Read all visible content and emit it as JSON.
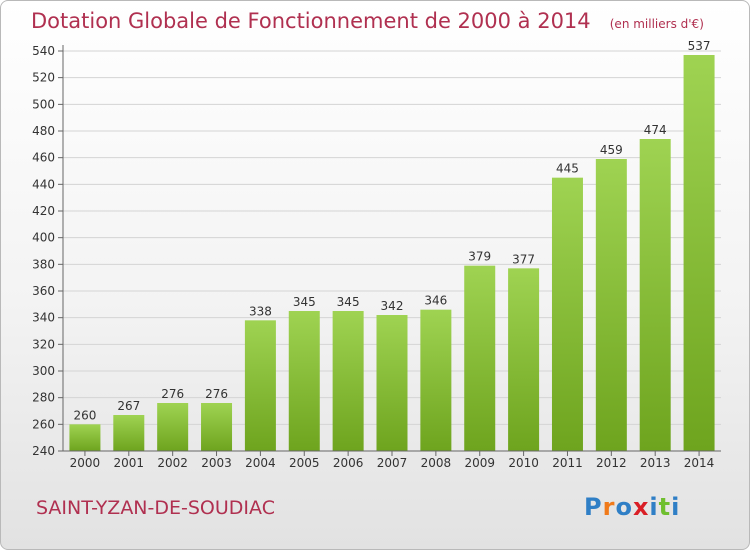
{
  "title": "Dotation Globale de Fonctionnement de 2000 à 2014",
  "subtitle": "(en milliers d'€)",
  "commune": "SAINT-YZAN-DE-SOUDIAC",
  "logo_text": "Proxiti",
  "colors": {
    "title": "#b03050",
    "bar_light": "#9fd352",
    "bar_dark": "#6ea41e",
    "logo": [
      "#2f7fc6",
      "#f07a1a",
      "#2f7fc6",
      "#d91f26",
      "#2f7fc6",
      "#6fbf2f",
      "#2f7fc6"
    ]
  },
  "chart_data": {
    "type": "bar",
    "title": "Dotation Globale de Fonctionnement de 2000 à 2014",
    "subtitle": "(en milliers d'€)",
    "categories": [
      "2000",
      "2001",
      "2002",
      "2003",
      "2004",
      "2005",
      "2006",
      "2007",
      "2008",
      "2009",
      "2010",
      "2011",
      "2012",
      "2013",
      "2014"
    ],
    "values": [
      260,
      267,
      276,
      276,
      338,
      345,
      345,
      342,
      346,
      379,
      377,
      445,
      459,
      474,
      537
    ],
    "ylim": [
      240,
      540
    ],
    "yticks": [
      240,
      260,
      280,
      300,
      320,
      340,
      360,
      380,
      400,
      420,
      440,
      460,
      480,
      500,
      520,
      540
    ],
    "grid": true,
    "data_labels": true
  }
}
